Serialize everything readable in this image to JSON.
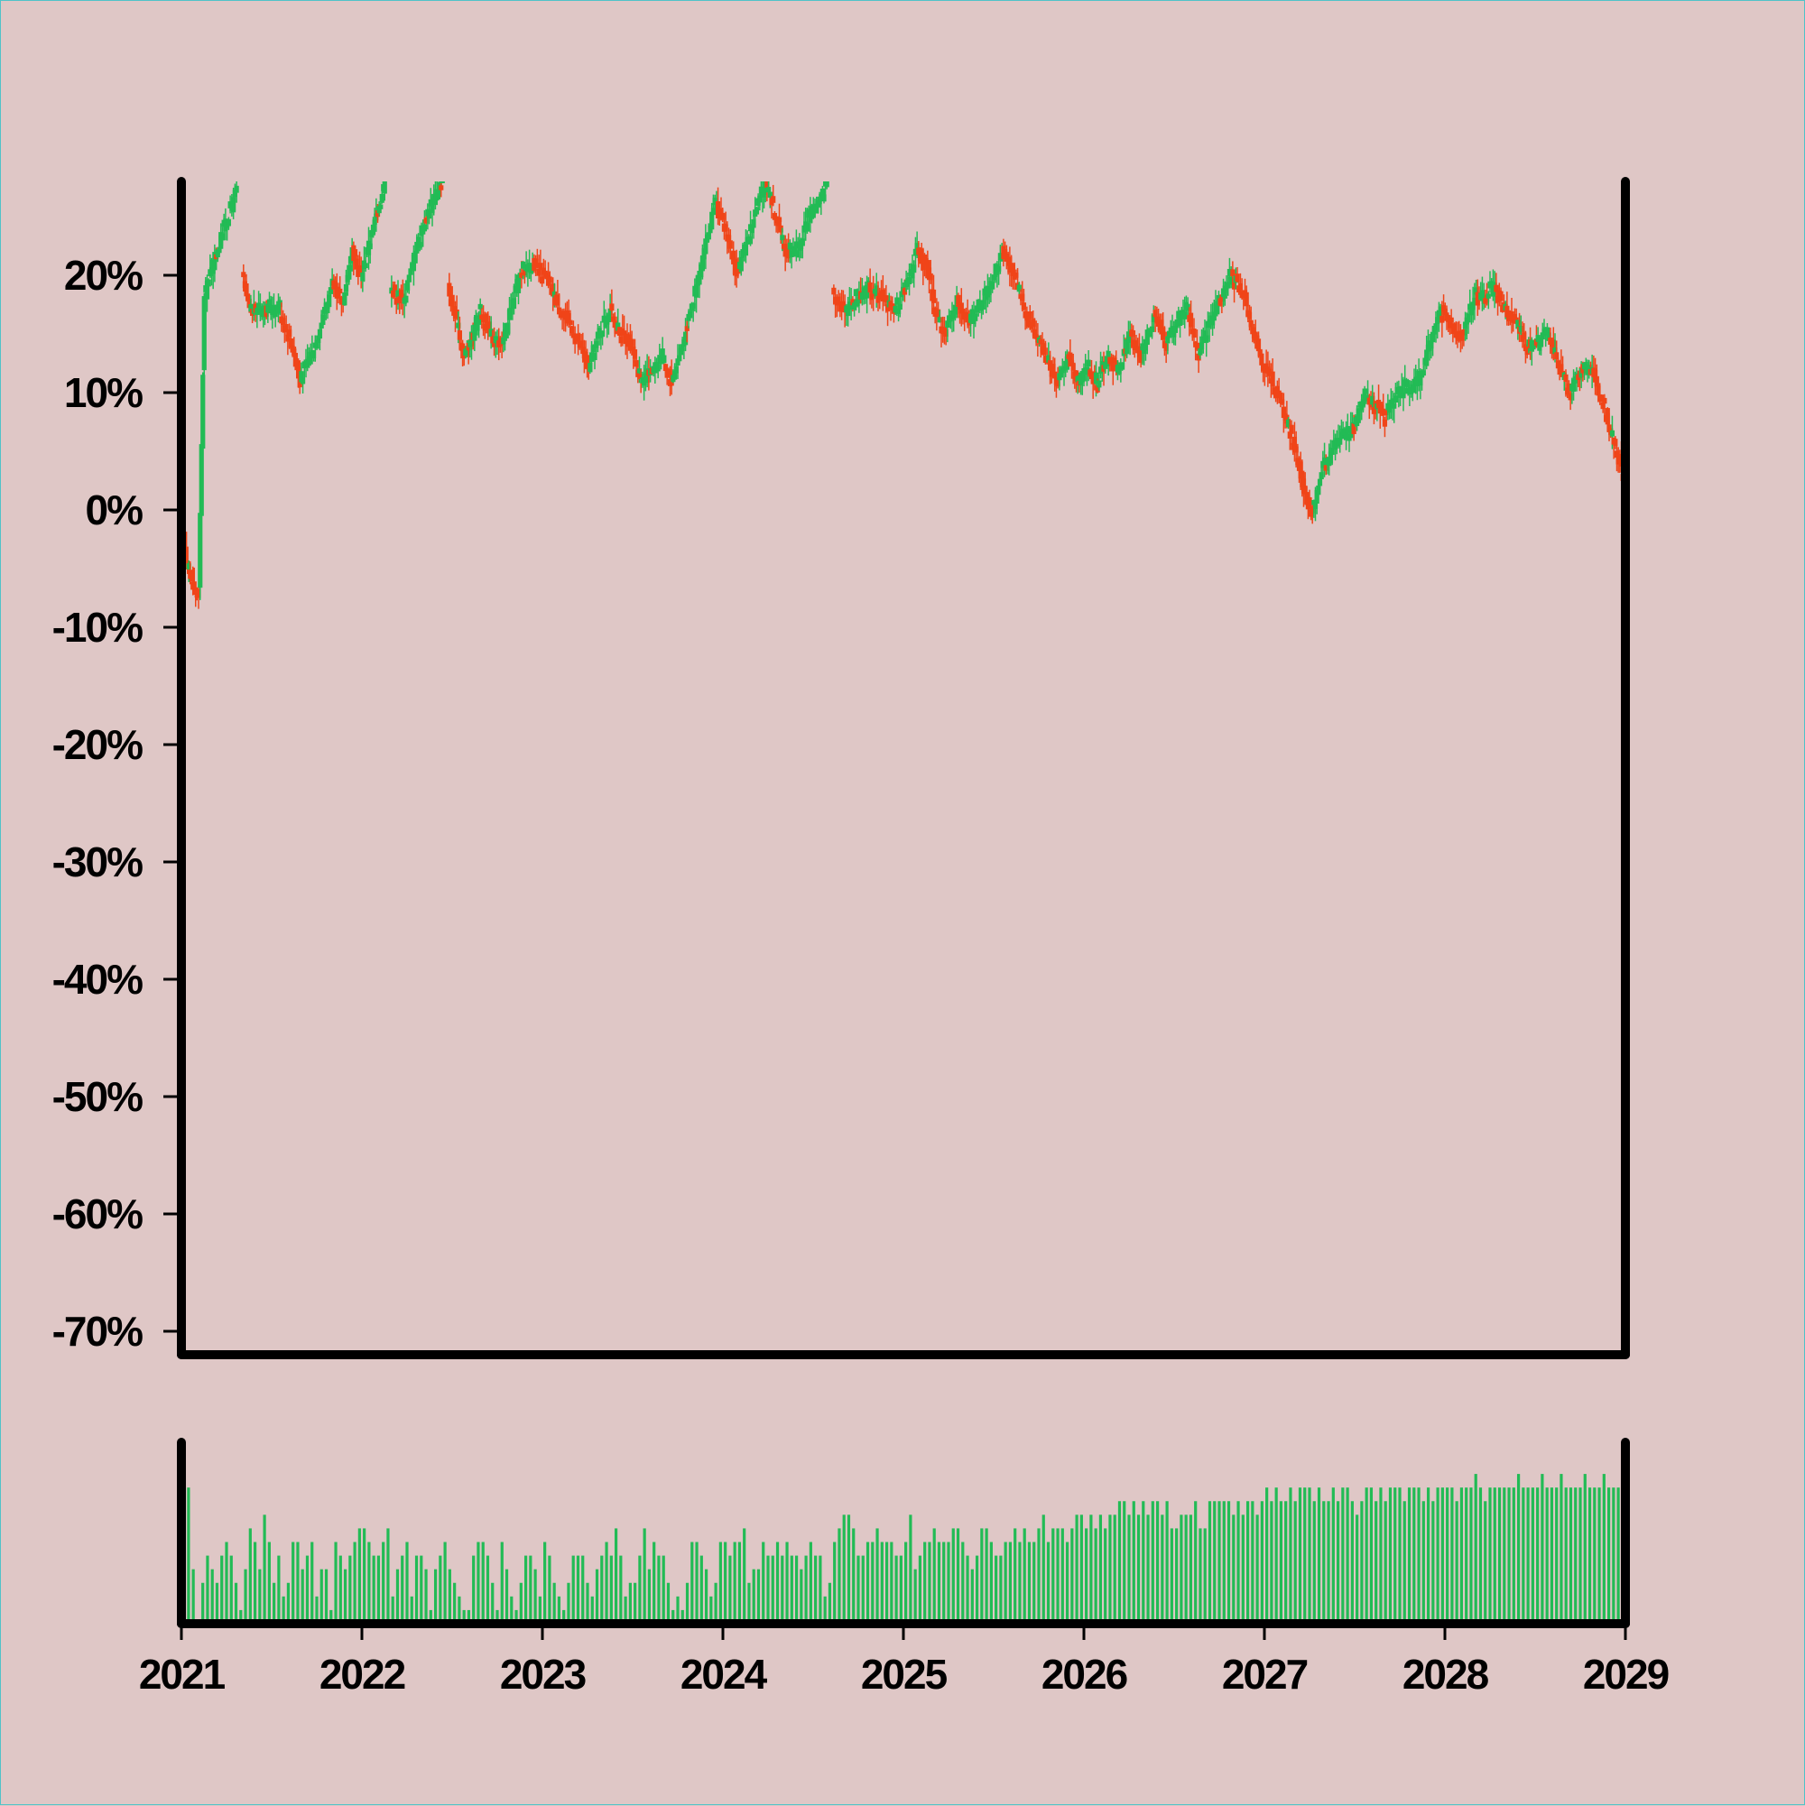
{
  "chart_data": {
    "type": "candlestick",
    "background_color": "#dfc7c6",
    "up_color": "#22bb55",
    "down_color": "#f04418",
    "axis_color": "#000000",
    "price_panel": {
      "ylim": [
        -72,
        28
      ],
      "yticks": [
        20,
        10,
        0,
        -10,
        -20,
        -30,
        -40,
        -50,
        -60,
        -70
      ],
      "ytick_labels": [
        "20%",
        "10%",
        "0%",
        "-10%",
        "-20%",
        "-30%",
        "-40%",
        "-50%",
        "-60%",
        "-70%"
      ],
      "ylabel": "",
      "unit": "%",
      "series": [
        {
          "x": 2021.0,
          "v": 0
        },
        {
          "x": 2021.03,
          "v": -4
        },
        {
          "x": 2021.06,
          "v": -6
        },
        {
          "x": 2021.09,
          "v": -7
        },
        {
          "x": 2021.1,
          "v": -7
        },
        {
          "x": 2021.13,
          "v": 18
        },
        {
          "x": 2021.18,
          "v": 21
        },
        {
          "x": 2021.24,
          "v": 24
        },
        {
          "x": 2021.31,
          "v": 27
        },
        {
          "x": 2021.32,
          "v": null
        },
        {
          "x": 2021.34,
          "v": 20
        },
        {
          "x": 2021.38,
          "v": 17
        },
        {
          "x": 2021.45,
          "v": 17
        },
        {
          "x": 2021.55,
          "v": 17
        },
        {
          "x": 2021.62,
          "v": 14
        },
        {
          "x": 2021.66,
          "v": 11
        },
        {
          "x": 2021.72,
          "v": 13
        },
        {
          "x": 2021.78,
          "v": 16
        },
        {
          "x": 2021.84,
          "v": 19
        },
        {
          "x": 2021.9,
          "v": 18
        },
        {
          "x": 2021.95,
          "v": 22
        },
        {
          "x": 2022.0,
          "v": 20
        },
        {
          "x": 2022.05,
          "v": 23
        },
        {
          "x": 2022.1,
          "v": 26
        },
        {
          "x": 2022.13,
          "v": 28
        },
        {
          "x": 2022.14,
          "v": null
        },
        {
          "x": 2022.16,
          "v": 19
        },
        {
          "x": 2022.24,
          "v": 18
        },
        {
          "x": 2022.3,
          "v": 22
        },
        {
          "x": 2022.36,
          "v": 25
        },
        {
          "x": 2022.42,
          "v": 27
        },
        {
          "x": 2022.45,
          "v": 28
        },
        {
          "x": 2022.46,
          "v": null
        },
        {
          "x": 2022.48,
          "v": 19
        },
        {
          "x": 2022.53,
          "v": 16
        },
        {
          "x": 2022.57,
          "v": 13
        },
        {
          "x": 2022.62,
          "v": 15
        },
        {
          "x": 2022.66,
          "v": 17
        },
        {
          "x": 2022.72,
          "v": 15
        },
        {
          "x": 2022.78,
          "v": 14
        },
        {
          "x": 2022.83,
          "v": 17
        },
        {
          "x": 2022.88,
          "v": 20
        },
        {
          "x": 2022.95,
          "v": 21
        },
        {
          "x": 2023.02,
          "v": 20
        },
        {
          "x": 2023.08,
          "v": 18
        },
        {
          "x": 2023.15,
          "v": 16
        },
        {
          "x": 2023.22,
          "v": 14
        },
        {
          "x": 2023.26,
          "v": 12
        },
        {
          "x": 2023.32,
          "v": 15
        },
        {
          "x": 2023.38,
          "v": 17
        },
        {
          "x": 2023.44,
          "v": 15
        },
        {
          "x": 2023.5,
          "v": 14
        },
        {
          "x": 2023.55,
          "v": 11
        },
        {
          "x": 2023.62,
          "v": 12
        },
        {
          "x": 2023.67,
          "v": 13
        },
        {
          "x": 2023.72,
          "v": 11
        },
        {
          "x": 2023.78,
          "v": 14
        },
        {
          "x": 2023.84,
          "v": 18
        },
        {
          "x": 2023.9,
          "v": 22
        },
        {
          "x": 2023.96,
          "v": 26
        },
        {
          "x": 2024.02,
          "v": 24
        },
        {
          "x": 2024.08,
          "v": 20
        },
        {
          "x": 2024.14,
          "v": 23
        },
        {
          "x": 2024.2,
          "v": 26
        },
        {
          "x": 2024.24,
          "v": 28
        },
        {
          "x": 2024.3,
          "v": 25
        },
        {
          "x": 2024.35,
          "v": 22
        },
        {
          "x": 2024.42,
          "v": 22
        },
        {
          "x": 2024.48,
          "v": 25
        },
        {
          "x": 2024.54,
          "v": 26
        },
        {
          "x": 2024.58,
          "v": 28
        },
        {
          "x": 2024.59,
          "v": null
        },
        {
          "x": 2024.61,
          "v": 19
        },
        {
          "x": 2024.68,
          "v": 17
        },
        {
          "x": 2024.75,
          "v": 18
        },
        {
          "x": 2024.82,
          "v": 19
        },
        {
          "x": 2024.9,
          "v": 18
        },
        {
          "x": 2024.96,
          "v": 17
        },
        {
          "x": 2025.02,
          "v": 19
        },
        {
          "x": 2025.08,
          "v": 22
        },
        {
          "x": 2025.13,
          "v": 21
        },
        {
          "x": 2025.18,
          "v": 17
        },
        {
          "x": 2025.24,
          "v": 15
        },
        {
          "x": 2025.3,
          "v": 18
        },
        {
          "x": 2025.36,
          "v": 16
        },
        {
          "x": 2025.42,
          "v": 17
        },
        {
          "x": 2025.48,
          "v": 19
        },
        {
          "x": 2025.55,
          "v": 22
        },
        {
          "x": 2025.62,
          "v": 20
        },
        {
          "x": 2025.68,
          "v": 17
        },
        {
          "x": 2025.74,
          "v": 15
        },
        {
          "x": 2025.8,
          "v": 13
        },
        {
          "x": 2025.86,
          "v": 11
        },
        {
          "x": 2025.92,
          "v": 13
        },
        {
          "x": 2025.97,
          "v": 11
        },
        {
          "x": 2026.03,
          "v": 12
        },
        {
          "x": 2026.08,
          "v": 11
        },
        {
          "x": 2026.14,
          "v": 13
        },
        {
          "x": 2026.2,
          "v": 12
        },
        {
          "x": 2026.26,
          "v": 15
        },
        {
          "x": 2026.32,
          "v": 13
        },
        {
          "x": 2026.4,
          "v": 17
        },
        {
          "x": 2026.46,
          "v": 14
        },
        {
          "x": 2026.52,
          "v": 16
        },
        {
          "x": 2026.58,
          "v": 17
        },
        {
          "x": 2026.64,
          "v": 13
        },
        {
          "x": 2026.7,
          "v": 16
        },
        {
          "x": 2026.76,
          "v": 18
        },
        {
          "x": 2026.82,
          "v": 20
        },
        {
          "x": 2026.88,
          "v": 19
        },
        {
          "x": 2026.93,
          "v": 16
        },
        {
          "x": 2026.98,
          "v": 13
        },
        {
          "x": 2027.05,
          "v": 11
        },
        {
          "x": 2027.12,
          "v": 8
        },
        {
          "x": 2027.18,
          "v": 5
        },
        {
          "x": 2027.23,
          "v": 1
        },
        {
          "x": 2027.27,
          "v": 0
        },
        {
          "x": 2027.32,
          "v": 3
        },
        {
          "x": 2027.38,
          "v": 5
        },
        {
          "x": 2027.44,
          "v": 6
        },
        {
          "x": 2027.5,
          "v": 7
        },
        {
          "x": 2027.56,
          "v": 10
        },
        {
          "x": 2027.62,
          "v": 9
        },
        {
          "x": 2027.68,
          "v": 8
        },
        {
          "x": 2027.74,
          "v": 10
        },
        {
          "x": 2027.8,
          "v": 10
        },
        {
          "x": 2027.86,
          "v": 11
        },
        {
          "x": 2027.92,
          "v": 14
        },
        {
          "x": 2027.98,
          "v": 17
        },
        {
          "x": 2028.04,
          "v": 16
        },
        {
          "x": 2028.1,
          "v": 15
        },
        {
          "x": 2028.16,
          "v": 18
        },
        {
          "x": 2028.22,
          "v": 18
        },
        {
          "x": 2028.28,
          "v": 19
        },
        {
          "x": 2028.34,
          "v": 17
        },
        {
          "x": 2028.4,
          "v": 16
        },
        {
          "x": 2028.46,
          "v": 14
        },
        {
          "x": 2028.52,
          "v": 14
        },
        {
          "x": 2028.58,
          "v": 15
        },
        {
          "x": 2028.64,
          "v": 12
        },
        {
          "x": 2028.7,
          "v": 10
        },
        {
          "x": 2028.76,
          "v": 12
        },
        {
          "x": 2028.82,
          "v": 12
        },
        {
          "x": 2028.88,
          "v": 9
        },
        {
          "x": 2028.94,
          "v": 6
        },
        {
          "x": 2028.99,
          "v": 3
        }
      ]
    },
    "volume_panel": {
      "color": "#22bb55",
      "ylim": [
        0,
        12
      ],
      "bars_per_year": 38,
      "volumes": [
        6,
        10,
        4,
        0,
        3,
        5,
        4,
        3,
        5,
        6,
        5,
        3,
        1,
        4,
        7,
        6,
        4,
        8,
        6,
        3,
        5,
        2,
        3,
        6,
        6,
        4,
        5,
        6,
        2,
        4,
        4,
        1,
        6,
        5,
        4,
        5,
        6,
        7,
        7,
        6,
        5,
        5,
        6,
        7,
        2,
        4,
        5,
        6,
        2,
        5,
        5,
        4,
        1,
        4,
        5,
        6,
        4,
        3,
        2,
        1,
        1,
        5,
        6,
        6,
        5,
        3,
        1,
        6,
        4,
        2,
        1,
        3,
        5,
        5,
        4,
        2,
        6,
        5,
        3,
        2,
        1,
        3,
        5,
        5,
        5,
        3,
        2,
        4,
        5,
        6,
        5,
        7,
        5,
        2,
        3,
        3,
        5,
        7,
        4,
        6,
        5,
        5,
        3,
        1,
        2,
        1,
        3,
        6,
        6,
        5,
        4,
        2,
        3,
        6,
        6,
        5,
        6,
        6,
        7,
        3,
        4,
        4,
        6,
        5,
        5,
        6,
        5,
        6,
        5,
        5,
        4,
        5,
        6,
        5,
        5,
        2,
        3,
        6,
        7,
        8,
        8,
        7,
        5,
        5,
        6,
        6,
        7,
        6,
        6,
        6,
        5,
        5,
        6,
        8,
        4,
        5,
        6,
        6,
        7,
        6,
        6,
        6,
        7,
        7,
        6,
        5,
        4,
        5,
        7,
        7,
        6,
        5,
        5,
        6,
        6,
        7,
        6,
        7,
        6,
        6,
        7,
        8,
        6,
        7,
        7,
        7,
        6,
        7,
        8,
        8,
        7,
        8,
        7,
        8,
        7,
        8,
        8,
        9,
        9,
        8,
        9,
        8,
        9,
        8,
        9,
        9,
        8,
        9,
        7,
        7,
        8,
        8,
        8,
        9,
        7,
        7,
        9,
        9,
        9,
        9,
        9,
        8,
        9,
        8,
        9,
        9,
        8,
        9,
        10,
        9,
        10,
        9,
        9,
        10,
        9,
        10,
        10,
        10,
        9,
        10,
        9,
        9,
        10,
        9,
        10,
        10,
        9,
        8,
        9,
        10,
        10,
        9,
        10,
        9,
        10,
        10,
        10,
        9,
        10,
        10,
        10,
        9,
        10,
        9,
        10,
        10,
        10,
        10,
        9,
        10,
        10,
        10,
        11,
        10,
        9,
        10,
        10,
        10,
        10,
        10,
        10,
        11,
        10,
        10,
        10,
        10,
        11,
        10,
        10,
        10,
        11,
        10,
        10,
        10,
        10,
        11,
        10,
        10,
        10,
        11,
        10,
        10,
        10,
        10,
        11,
        10,
        10
      ]
    },
    "x_axis": {
      "xlim": [
        2021,
        2029
      ],
      "ticks": [
        2021,
        2022,
        2023,
        2024,
        2025,
        2026,
        2027,
        2028,
        2029
      ],
      "tick_labels": [
        "2021",
        "2022",
        "2023",
        "2024",
        "2025",
        "2026",
        "2027",
        "2028",
        "2029"
      ]
    },
    "title": "",
    "xlabel": "",
    "legend": "none",
    "grid": false
  }
}
